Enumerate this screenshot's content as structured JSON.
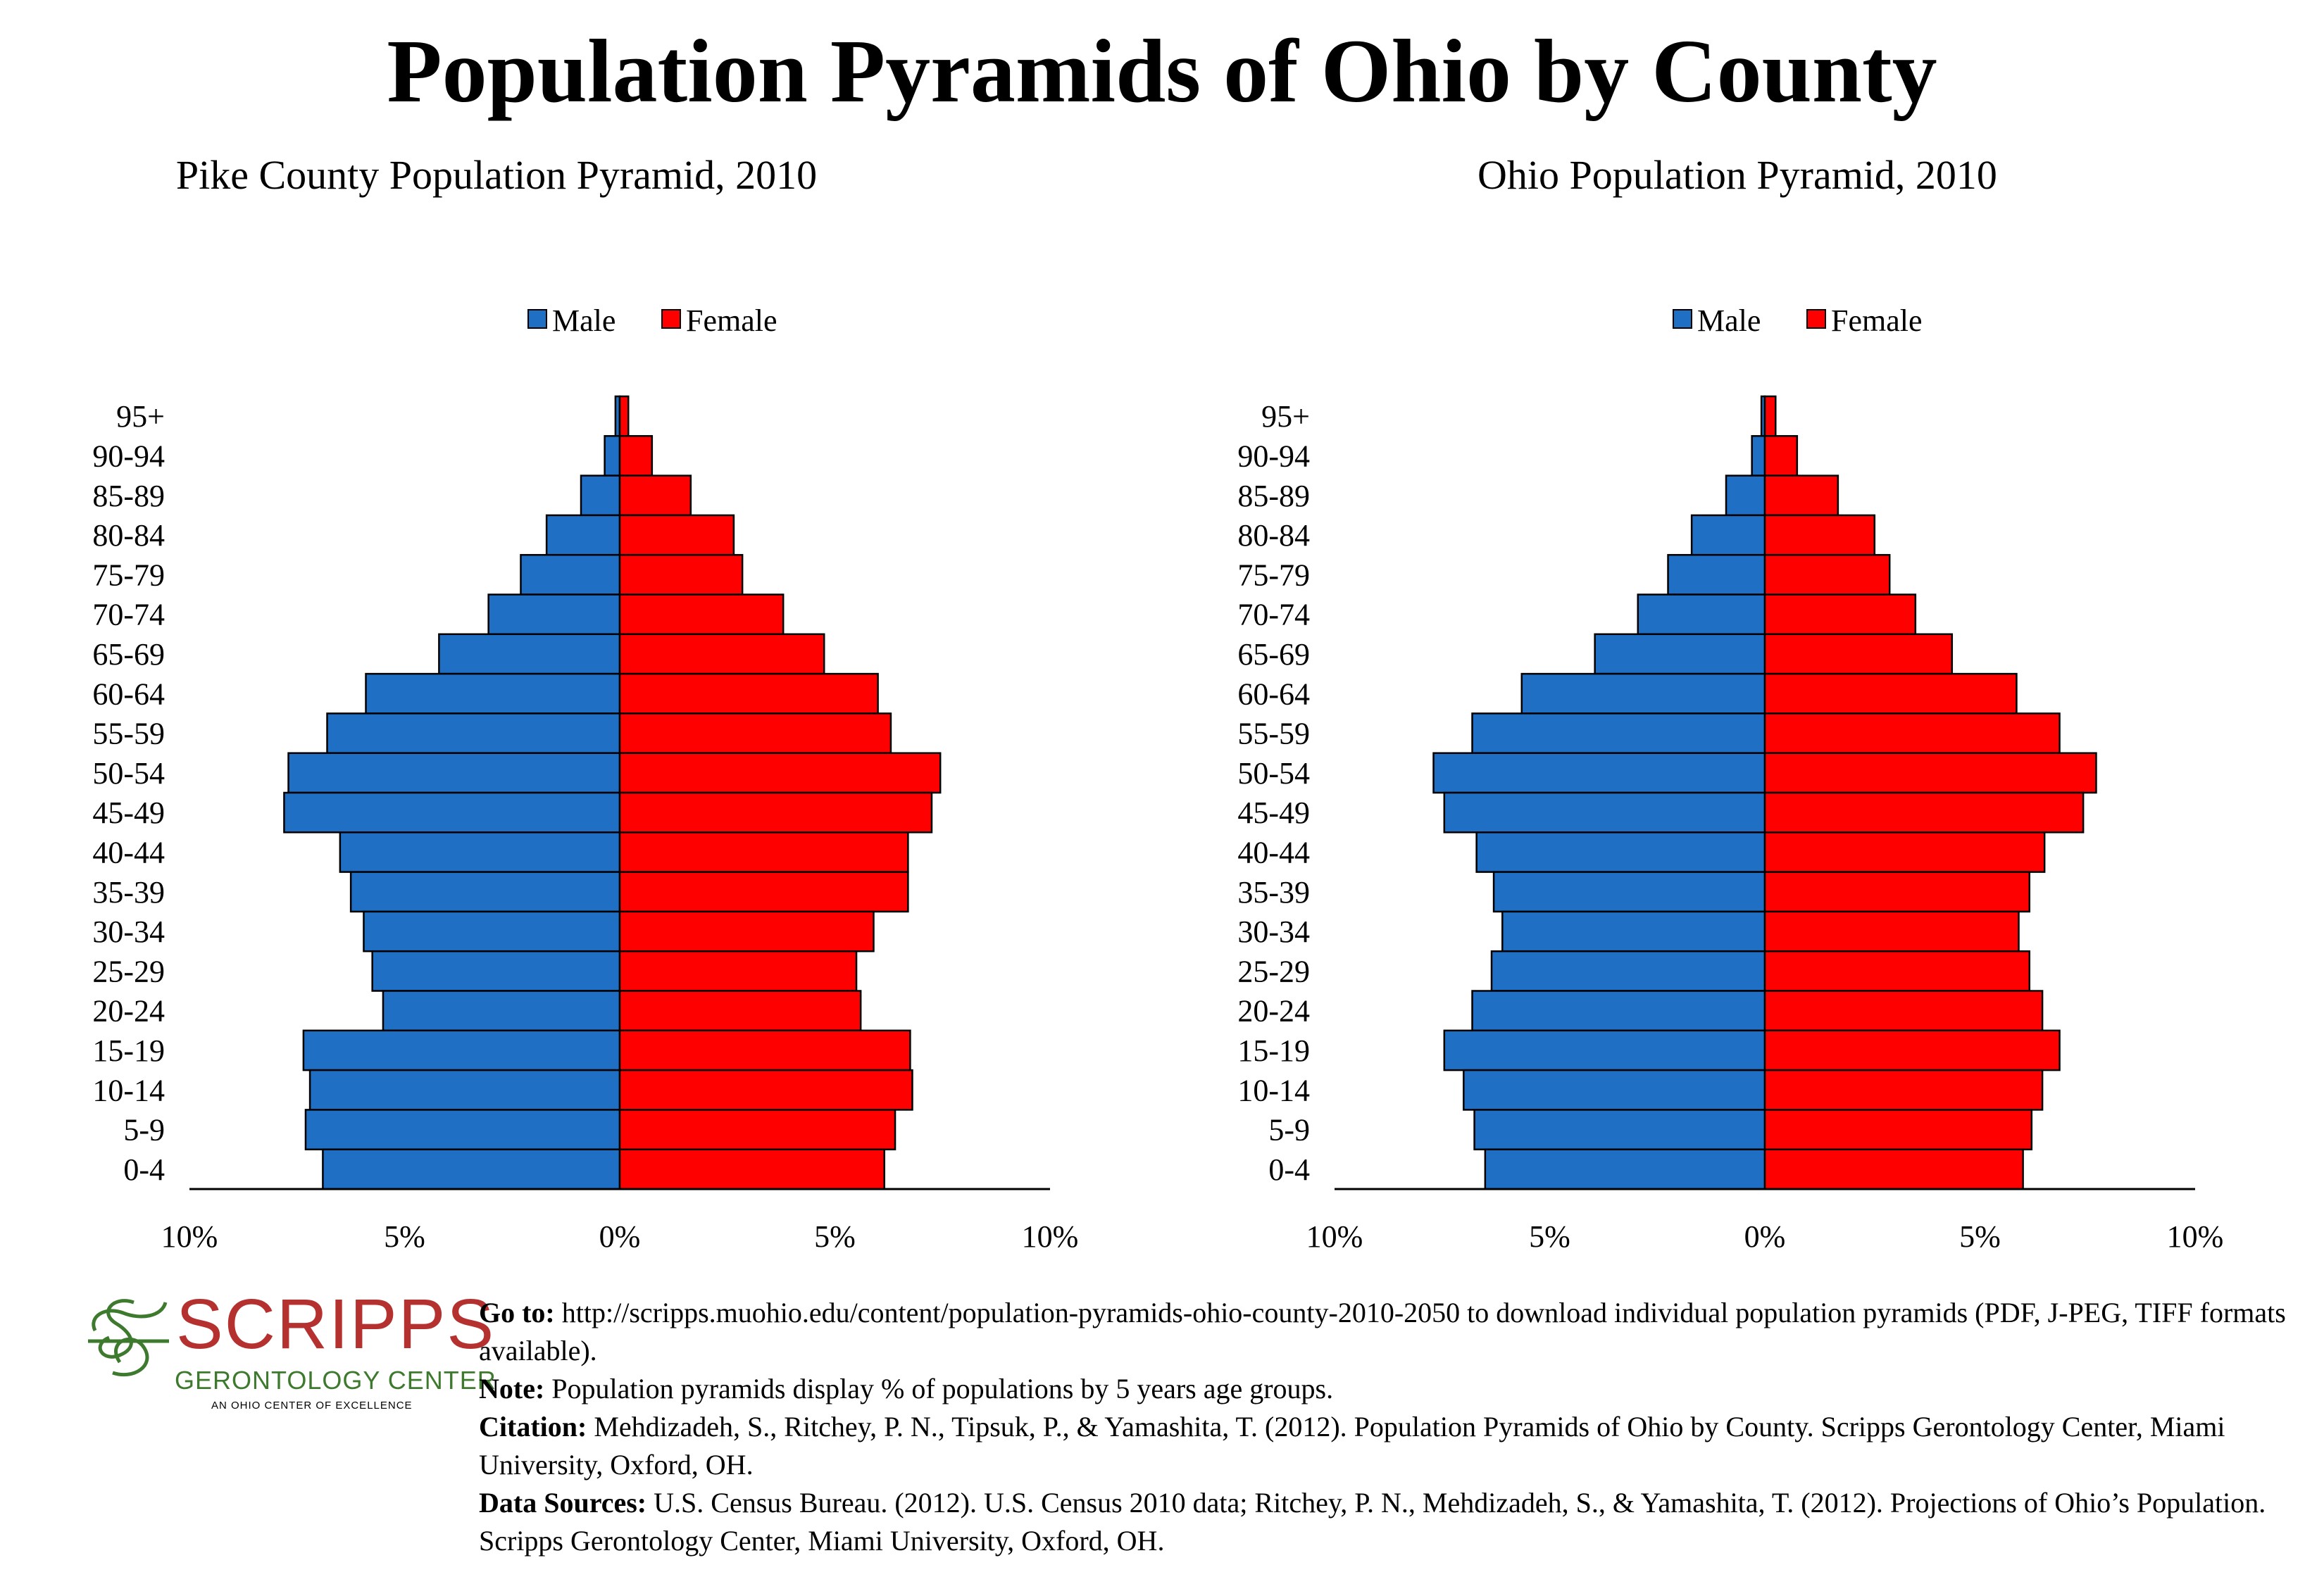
{
  "title": "Population Pyramids of Ohio by County",
  "colors": {
    "male": "#1f6fc4",
    "female": "#ff0000",
    "outline": "#000000"
  },
  "legend": {
    "male": "Male",
    "female": "Female"
  },
  "chart_data": [
    {
      "type": "bar",
      "title": "Pike County Population Pyramid, 2010",
      "categories": [
        "95+",
        "90-94",
        "85-89",
        "80-84",
        "75-79",
        "70-74",
        "65-69",
        "60-64",
        "55-59",
        "50-54",
        "45-49",
        "40-44",
        "35-39",
        "30-34",
        "25-29",
        "20-24",
        "15-19",
        "10-14",
        "5-9",
        "0-4"
      ],
      "series": [
        {
          "name": "Male",
          "values": [
            0.1,
            0.35,
            0.9,
            1.7,
            2.3,
            3.05,
            4.2,
            5.9,
            6.8,
            7.7,
            7.8,
            6.5,
            6.25,
            5.95,
            5.75,
            5.5,
            7.35,
            7.2,
            7.3,
            6.9
          ]
        },
        {
          "name": "Female",
          "values": [
            0.2,
            0.75,
            1.65,
            2.65,
            2.85,
            3.8,
            4.75,
            6.0,
            6.3,
            7.45,
            7.25,
            6.7,
            6.7,
            5.9,
            5.5,
            5.6,
            6.75,
            6.8,
            6.4,
            6.15
          ]
        }
      ],
      "xlim": [
        -10,
        10
      ],
      "xticks": [
        "10%",
        "5%",
        "0%",
        "5%",
        "10%"
      ],
      "legend_position": "top"
    },
    {
      "type": "bar",
      "title": "Ohio Population Pyramid, 2010",
      "categories": [
        "95+",
        "90-94",
        "85-89",
        "80-84",
        "75-79",
        "70-74",
        "65-69",
        "60-64",
        "55-59",
        "50-54",
        "45-49",
        "40-44",
        "35-39",
        "30-34",
        "25-29",
        "20-24",
        "15-19",
        "10-14",
        "5-9",
        "0-4"
      ],
      "series": [
        {
          "name": "Male",
          "values": [
            0.08,
            0.3,
            0.9,
            1.7,
            2.25,
            2.95,
            3.95,
            5.65,
            6.8,
            7.7,
            7.45,
            6.7,
            6.3,
            6.1,
            6.35,
            6.8,
            7.45,
            7.0,
            6.75,
            6.5
          ]
        },
        {
          "name": "Female",
          "values": [
            0.25,
            0.75,
            1.7,
            2.55,
            2.9,
            3.5,
            4.35,
            5.85,
            6.85,
            7.7,
            7.4,
            6.5,
            6.15,
            5.9,
            6.15,
            6.45,
            6.85,
            6.45,
            6.2,
            6.0
          ]
        }
      ],
      "xlim": [
        -10,
        10
      ],
      "xticks": [
        "10%",
        "5%",
        "0%",
        "5%",
        "10%"
      ],
      "legend_position": "top"
    }
  ],
  "logo": {
    "name": "SCRIPPS",
    "subtitle": "GERONTOLOGY CENTER",
    "tagline": "AN OHIO CENTER OF EXCELLENCE"
  },
  "notes": {
    "goto_label": "Go to:",
    "goto_text": " http://scripps.muohio.edu/content/population-pyramids-ohio-county-2010-2050 to download individual population pyramids (PDF, J-PEG, TIFF formats available).",
    "note_label": "Note:",
    "note_text": " Population pyramids display % of populations by 5 years age groups.",
    "citation_label": "Citation:",
    "citation_text": " Mehdizadeh, S., Ritchey, P. N., Tipsuk, P., & Yamashita, T. (2012). Population Pyramids of Ohio by County. Scripps Gerontology Center, Miami University, Oxford, OH.",
    "sources_label": "Data Sources:",
    "sources_text": " U.S. Census Bureau. (2012). U.S. Census 2010 data; Ritchey, P. N., Mehdizadeh, S., & Yamashita, T. (2012). Projections of Ohio’s Population. Scripps Gerontology Center, Miami University, Oxford, OH."
  }
}
